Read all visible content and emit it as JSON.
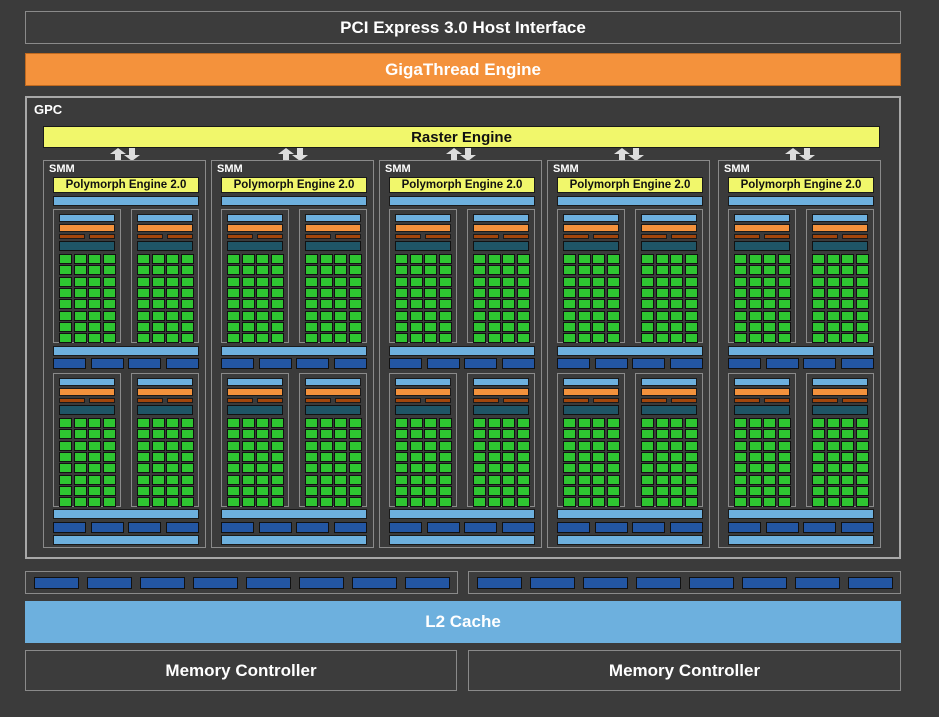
{
  "title_bar": "PCI Express 3.0 Host Interface",
  "gigathread": "GigaThread Engine",
  "gpc": {
    "label": "GPC",
    "raster_engine": "Raster Engine",
    "smm_count": 5,
    "smm": {
      "label": "SMM",
      "polymorph": "Polymorph Engine 2.0",
      "quadrants": 4,
      "core_rows": 8,
      "core_cols": 4
    }
  },
  "memory_units_per_half": 8,
  "l2_cache": "L2 Cache",
  "memory_controllers": [
    "Memory Controller",
    "Memory Controller"
  ],
  "colors": {
    "gigathread": "#f4923c",
    "raster": "#f1f76b",
    "l2": "#6db0de",
    "core": "#2ec531",
    "unit": "#2356a3"
  }
}
